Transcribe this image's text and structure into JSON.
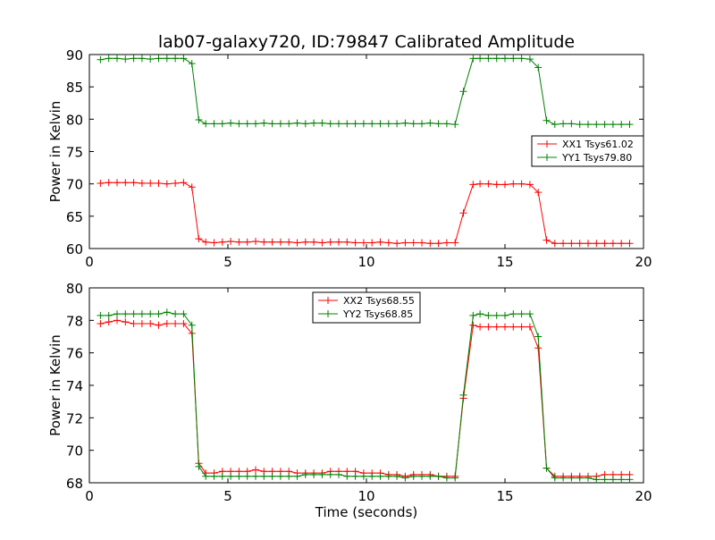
{
  "title": "lab07-galaxy720, ID:79847 Calibrated Amplitude",
  "xlabel": "Time (seconds)",
  "chart_data": [
    {
      "type": "line",
      "title": "lab07-galaxy720, ID:79847 Calibrated Amplitude",
      "xlabel": "",
      "ylabel": "Power in Kelvin",
      "xlim": [
        0,
        20
      ],
      "ylim": [
        60,
        90
      ],
      "xticks": [
        0,
        5,
        10,
        15,
        20
      ],
      "yticks": [
        60,
        65,
        70,
        75,
        80,
        85,
        90
      ],
      "grid": false,
      "legend": "center-right",
      "x": [
        0.4,
        0.7,
        1.0,
        1.3,
        1.6,
        1.9,
        2.2,
        2.5,
        2.8,
        3.1,
        3.4,
        3.7,
        3.95,
        4.2,
        4.5,
        4.8,
        5.1,
        5.4,
        5.7,
        6.0,
        6.3,
        6.6,
        6.9,
        7.2,
        7.5,
        7.8,
        8.1,
        8.4,
        8.7,
        9.0,
        9.3,
        9.6,
        9.9,
        10.2,
        10.5,
        10.8,
        11.1,
        11.4,
        11.7,
        12.0,
        12.3,
        12.6,
        12.9,
        13.2,
        13.5,
        13.85,
        14.1,
        14.4,
        14.7,
        15.0,
        15.3,
        15.6,
        15.9,
        16.2,
        16.5,
        16.8,
        17.1,
        17.4,
        17.7,
        18.0,
        18.3,
        18.6,
        18.9,
        19.2,
        19.5
      ],
      "series": [
        {
          "name": "XX1 Tsys61.02",
          "color": "#ff0000",
          "values": [
            70.1,
            70.2,
            70.2,
            70.2,
            70.2,
            70.1,
            70.1,
            70.1,
            70.0,
            70.1,
            70.2,
            69.5,
            61.5,
            61.0,
            60.9,
            61.0,
            61.1,
            61.0,
            61.0,
            61.1,
            61.0,
            61.0,
            61.0,
            61.0,
            60.9,
            61.0,
            61.0,
            60.9,
            61.0,
            61.0,
            61.0,
            60.9,
            60.9,
            60.9,
            61.0,
            60.9,
            60.8,
            60.9,
            60.9,
            60.9,
            60.8,
            60.8,
            60.9,
            60.9,
            65.5,
            69.9,
            70.0,
            70.0,
            69.9,
            69.9,
            70.0,
            70.0,
            69.9,
            68.7,
            61.3,
            60.8,
            60.8,
            60.8,
            60.8,
            60.8,
            60.8,
            60.8,
            60.8,
            60.8,
            60.8
          ]
        },
        {
          "name": "YY1 Tsys79.80",
          "color": "#008000",
          "values": [
            89.2,
            89.4,
            89.4,
            89.3,
            89.4,
            89.4,
            89.3,
            89.4,
            89.4,
            89.4,
            89.4,
            88.6,
            79.9,
            79.3,
            79.3,
            79.3,
            79.4,
            79.3,
            79.3,
            79.3,
            79.4,
            79.3,
            79.3,
            79.3,
            79.4,
            79.3,
            79.4,
            79.4,
            79.3,
            79.3,
            79.3,
            79.3,
            79.3,
            79.3,
            79.3,
            79.3,
            79.3,
            79.4,
            79.3,
            79.3,
            79.4,
            79.3,
            79.3,
            79.2,
            84.3,
            89.4,
            89.4,
            89.4,
            89.4,
            89.4,
            89.4,
            89.4,
            89.3,
            88.0,
            79.8,
            79.2,
            79.3,
            79.3,
            79.2,
            79.2,
            79.2,
            79.2,
            79.2,
            79.2,
            79.2
          ]
        }
      ]
    },
    {
      "type": "line",
      "title": "",
      "xlabel": "Time (seconds)",
      "ylabel": "Power in Kelvin",
      "xlim": [
        0,
        20
      ],
      "ylim": [
        68,
        80
      ],
      "xticks": [
        0,
        5,
        10,
        15,
        20
      ],
      "yticks": [
        68,
        70,
        72,
        74,
        76,
        78,
        80
      ],
      "grid": false,
      "legend": "top-center",
      "x": [
        0.4,
        0.7,
        1.0,
        1.3,
        1.6,
        1.9,
        2.2,
        2.5,
        2.8,
        3.1,
        3.4,
        3.7,
        3.95,
        4.2,
        4.5,
        4.8,
        5.1,
        5.4,
        5.7,
        6.0,
        6.3,
        6.6,
        6.9,
        7.2,
        7.5,
        7.8,
        8.1,
        8.4,
        8.7,
        9.0,
        9.3,
        9.6,
        9.9,
        10.2,
        10.5,
        10.8,
        11.1,
        11.4,
        11.7,
        12.0,
        12.3,
        12.6,
        12.9,
        13.2,
        13.5,
        13.85,
        14.1,
        14.4,
        14.7,
        15.0,
        15.3,
        15.6,
        15.9,
        16.2,
        16.5,
        16.8,
        17.1,
        17.4,
        17.7,
        18.0,
        18.3,
        18.6,
        18.9,
        19.2,
        19.5
      ],
      "series": [
        {
          "name": "XX2 Tsys68.55",
          "color": "#ff0000",
          "values": [
            77.8,
            77.9,
            78.0,
            77.9,
            77.8,
            77.8,
            77.8,
            77.7,
            77.8,
            77.8,
            77.8,
            77.2,
            69.2,
            68.6,
            68.6,
            68.7,
            68.7,
            68.7,
            68.7,
            68.8,
            68.7,
            68.7,
            68.7,
            68.7,
            68.6,
            68.6,
            68.6,
            68.6,
            68.7,
            68.7,
            68.7,
            68.7,
            68.6,
            68.6,
            68.6,
            68.5,
            68.5,
            68.4,
            68.5,
            68.5,
            68.5,
            68.4,
            68.4,
            68.4,
            73.2,
            77.7,
            77.6,
            77.6,
            77.6,
            77.6,
            77.6,
            77.6,
            77.6,
            76.3,
            68.9,
            68.4,
            68.4,
            68.4,
            68.4,
            68.4,
            68.4,
            68.5,
            68.5,
            68.5,
            68.5
          ]
        },
        {
          "name": "YY2 Tsys68.85",
          "color": "#008000",
          "values": [
            78.3,
            78.3,
            78.4,
            78.4,
            78.4,
            78.4,
            78.4,
            78.4,
            78.5,
            78.4,
            78.4,
            77.7,
            69.0,
            68.4,
            68.4,
            68.4,
            68.4,
            68.4,
            68.4,
            68.4,
            68.4,
            68.4,
            68.4,
            68.4,
            68.4,
            68.5,
            68.5,
            68.5,
            68.5,
            68.5,
            68.4,
            68.4,
            68.4,
            68.4,
            68.4,
            68.4,
            68.4,
            68.3,
            68.4,
            68.4,
            68.4,
            68.4,
            68.3,
            68.3,
            73.4,
            78.3,
            78.4,
            78.3,
            78.3,
            78.3,
            78.4,
            78.4,
            78.4,
            77.0,
            68.9,
            68.3,
            68.3,
            68.3,
            68.3,
            68.3,
            68.2,
            68.2,
            68.2,
            68.2,
            68.2
          ]
        }
      ]
    }
  ]
}
